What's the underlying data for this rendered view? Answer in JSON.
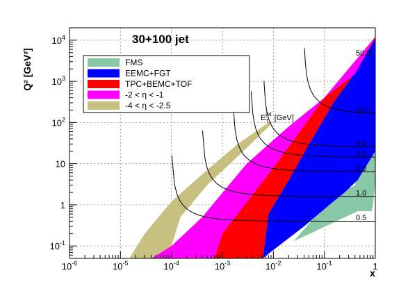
{
  "chart_data": {
    "type": "area",
    "title": "30+100 jet",
    "xlabel": "x",
    "ylabel": "Q² [GeV²]",
    "x_scale": "log",
    "y_scale": "log",
    "xlim": [
      1e-06,
      1
    ],
    "ylim": [
      0.05,
      20000
    ],
    "grid": true,
    "legend_position": "top-left",
    "x_tick_labels": [
      "10-6",
      "10-5",
      "10-4",
      "10-3",
      "10-2",
      "10-1",
      "1"
    ],
    "y_tick_labels": [
      "10-1",
      "1",
      "10",
      "102",
      "103",
      "104"
    ],
    "series": [
      {
        "name": "FMS",
        "color": "#88c8a6",
        "polygon": [
          [
            0.025,
            0.13
          ],
          [
            0.45,
            0.7
          ],
          [
            0.85,
            0.7
          ],
          [
            0.9,
            1
          ],
          [
            1,
            4
          ],
          [
            1,
            200
          ],
          [
            0.85,
            120
          ],
          [
            0.4,
            3
          ],
          [
            0.3,
            2.5
          ],
          [
            0.15,
            1.2
          ],
          [
            0.06,
            0.45
          ]
        ]
      },
      {
        "name": "EEMC+FGT",
        "color": "#0000ff",
        "polygon": [
          [
            0.0062,
            0.05
          ],
          [
            0.01,
            0.08
          ],
          [
            0.04,
            0.3
          ],
          [
            0.15,
            1.2
          ],
          [
            0.25,
            2
          ],
          [
            0.45,
            4
          ],
          [
            1,
            20
          ],
          [
            1,
            11000
          ],
          [
            0.45,
            2000
          ],
          [
            0.15,
            300
          ],
          [
            0.05,
            30
          ],
          [
            0.02,
            4
          ],
          [
            0.008,
            0.6
          ]
        ]
      },
      {
        "name": "TPC+BEMC+TOF",
        "color": "#ff0000",
        "polygon": [
          [
            0.0005,
            0.05
          ],
          [
            0.0062,
            0.05
          ],
          [
            0.008,
            0.6
          ],
          [
            0.02,
            4
          ],
          [
            0.05,
            30
          ],
          [
            0.15,
            300
          ],
          [
            0.45,
            2000
          ],
          [
            1,
            11000
          ],
          [
            1,
            12000
          ],
          [
            0.1,
            400
          ],
          [
            0.01,
            8
          ],
          [
            0.001,
            0.2
          ],
          [
            0.0007,
            0.05
          ]
        ]
      },
      {
        "name": "-2 < η < -1",
        "color": "#ff00ff",
        "polygon": [
          [
            4e-05,
            0.05
          ],
          [
            0.0005,
            0.05
          ],
          [
            0.0007,
            0.05
          ],
          [
            0.001,
            0.2
          ],
          [
            0.01,
            8
          ],
          [
            0.1,
            400
          ],
          [
            1,
            12000
          ],
          [
            0.4,
            1500
          ],
          [
            0.1,
            400
          ],
          [
            0.02,
            80
          ],
          [
            0.003,
            10
          ],
          [
            0.0004,
            0.5
          ],
          [
            0.0001,
            0.1
          ]
        ]
      },
      {
        "name": "-4 < η < -2.5",
        "color": "#c8c080",
        "polygon": [
          [
            1.5e-05,
            0.05
          ],
          [
            4e-05,
            0.05
          ],
          [
            0.0001,
            0.1
          ],
          [
            0.00015,
            0.5
          ],
          [
            0.0005,
            3
          ],
          [
            0.002,
            15
          ],
          [
            0.009,
            90
          ],
          [
            0.009,
            110
          ],
          [
            0.002,
            30
          ],
          [
            0.0005,
            7
          ],
          [
            0.0001,
            1.2
          ],
          [
            3e-05,
            0.2
          ]
        ]
      }
    ],
    "et_curves": [
      {
        "label": "0.5",
        "x_min": 0.0001,
        "q2_plateau": 0.4
      },
      {
        "label": "1.0",
        "x_min": 0.0004,
        "q2_plateau": 1.6
      },
      {
        "label": "2.0",
        "x_min": 0.0016,
        "q2_plateau": 6.4
      },
      {
        "label": "3.0",
        "x_min": 0.0036,
        "q2_plateau": 14.4
      },
      {
        "label": "4.0",
        "x_min": 0.0064,
        "q2_plateau": 25.6
      },
      {
        "label": "10.0",
        "x_min": 0.04,
        "q2_plateau": 160
      },
      {
        "label": "50.0",
        "x_min": 1.0,
        "q2_plateau": 4000
      }
    ],
    "et_label": "E_T^jet [GeV]",
    "et_label_parts": {
      "main": "E",
      "sub": "T",
      "sup": "jet",
      "unit": "[GeV]"
    }
  }
}
